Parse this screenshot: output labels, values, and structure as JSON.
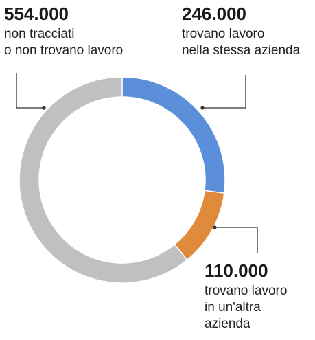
{
  "chart_data": {
    "type": "pie",
    "donut": true,
    "categories": [
      "trovano lavoro nella stessa azienda",
      "trovano lavoro in un'altra azienda",
      "non tracciati o non trovano lavoro"
    ],
    "values": [
      246000,
      110000,
      554000
    ],
    "value_labels": [
      "246.000",
      "110.000",
      "554.000"
    ],
    "label_lines": [
      [
        "trovano lavoro",
        "nella stessa azienda"
      ],
      [
        "trovano lavoro",
        "in un'altra",
        "azienda"
      ],
      [
        "non tracciati",
        "o non trovano lavoro"
      ]
    ],
    "colors": [
      "#5b8fd9",
      "#e08a3c",
      "#c0c0c0"
    ],
    "start": "top, clockwise",
    "legend": "none"
  },
  "labels": [
    {
      "value": "554.000",
      "line1": "non tracciati",
      "line2": "o non trovano lavoro"
    },
    {
      "value": "246.000",
      "line1": "trovano lavoro",
      "line2": "nella stessa azienda"
    },
    {
      "value": "110.000",
      "line1": "trovano lavoro",
      "line2": "in un'altra",
      "line3": "azienda"
    }
  ]
}
